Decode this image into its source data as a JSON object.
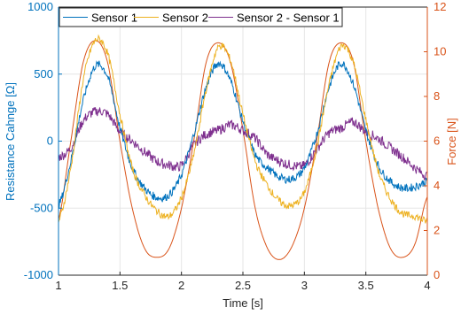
{
  "chart_data": {
    "type": "line",
    "title": "",
    "xlabel": "Time [s]",
    "ylabel_left": "Resistance Cahnge [Ω]",
    "ylabel_right": "Force [N]",
    "xlim": [
      1,
      4
    ],
    "ylim_left": [
      -1000,
      1000
    ],
    "ylim_right": [
      0,
      12
    ],
    "x_ticks": [
      "1",
      "1.5",
      "2",
      "2.5",
      "3",
      "3.5",
      "4"
    ],
    "y_left_ticks": [
      "1000",
      "500",
      "0",
      "-500",
      "-1000"
    ],
    "y_right_ticks": [
      "12",
      "10",
      "8",
      "6",
      "4",
      "2",
      "0"
    ],
    "grid": true,
    "legend_position": "top",
    "colors": {
      "sensor1": "#0072BD",
      "sensor2": "#EDB120",
      "diff": "#7E2F8E",
      "force": "#D95319",
      "left_axis": "#0072BD",
      "right_axis": "#D95319"
    },
    "x": [
      1.0,
      1.1,
      1.2,
      1.3,
      1.4,
      1.5,
      1.6,
      1.7,
      1.8,
      1.9,
      2.0,
      2.1,
      2.2,
      2.3,
      2.4,
      2.5,
      2.6,
      2.7,
      2.8,
      2.9,
      3.0,
      3.1,
      3.2,
      3.3,
      3.4,
      3.5,
      3.6,
      3.7,
      3.8,
      3.9,
      4.0
    ],
    "series": [
      {
        "name": "Sensor 1",
        "axis": "left",
        "color": "#0072BD",
        "values": [
          -480,
          -150,
          300,
          560,
          480,
          100,
          -200,
          -350,
          -420,
          -400,
          -250,
          50,
          400,
          580,
          450,
          150,
          -100,
          -200,
          -270,
          -280,
          -200,
          50,
          400,
          580,
          420,
          80,
          -180,
          -300,
          -350,
          -340,
          -300
        ]
      },
      {
        "name": "Sensor 2",
        "axis": "left",
        "color": "#EDB120",
        "values": [
          -600,
          -200,
          450,
          750,
          650,
          200,
          -200,
          -400,
          -520,
          -560,
          -420,
          -100,
          380,
          700,
          600,
          200,
          -150,
          -330,
          -450,
          -480,
          -380,
          -50,
          420,
          710,
          580,
          160,
          -220,
          -430,
          -540,
          -560,
          -600
        ]
      },
      {
        "name": "Sensor 2 - Sensor 1",
        "axis": "left",
        "color": "#7E2F8E",
        "values": [
          -120,
          -50,
          150,
          220,
          200,
          70,
          0,
          -80,
          -150,
          -180,
          -180,
          -30,
          50,
          80,
          120,
          80,
          20,
          -100,
          -150,
          -180,
          -180,
          -60,
          60,
          100,
          140,
          70,
          20,
          -50,
          -120,
          -200,
          -260
        ]
      },
      {
        "name": "",
        "axis": "right",
        "color": "#D95319",
        "values": [
          2.5,
          6.0,
          9.5,
          10.5,
          9.5,
          6.0,
          3.0,
          1.2,
          0.8,
          1.2,
          3.0,
          6.0,
          9.5,
          10.4,
          9.5,
          6.5,
          3.0,
          1.2,
          0.7,
          1.3,
          3.0,
          6.0,
          9.5,
          10.4,
          9.5,
          6.0,
          3.0,
          1.2,
          0.8,
          1.4,
          3.5
        ]
      }
    ]
  }
}
